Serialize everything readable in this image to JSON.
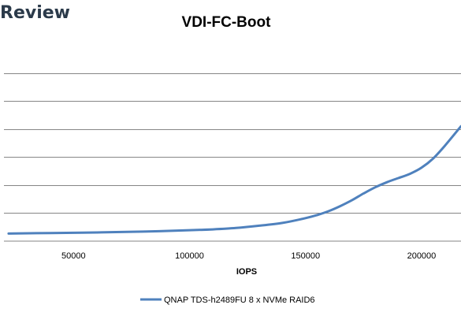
{
  "brand": {
    "logo_text": "Review"
  },
  "chart_data": {
    "type": "line",
    "title": "VDI-FC-Boot",
    "xlabel": "IOPS",
    "ylabel": "",
    "xlim": [
      20000,
      217000
    ],
    "ylim": [
      0,
      7
    ],
    "x_ticks": [
      50000,
      100000,
      150000,
      200000
    ],
    "x_tick_labels": [
      "50000",
      "100000",
      "150000",
      "200000"
    ],
    "y_gridlines": [
      1,
      2,
      3,
      4,
      5,
      6
    ],
    "grid": true,
    "legend_position": "bottom",
    "series": [
      {
        "name": "QNAP TDS-h2489FU 8 x NVMe RAID6",
        "color": "#4f81bd",
        "x": [
          22000,
          40000,
          60000,
          80000,
          100000,
          110000,
          120000,
          130000,
          140000,
          150000,
          155000,
          160000,
          165000,
          170000,
          175000,
          180000,
          185000,
          190000,
          195000,
          200000,
          205000,
          210000,
          217000
        ],
        "y": [
          0.27,
          0.29,
          0.31,
          0.34,
          0.39,
          0.42,
          0.47,
          0.55,
          0.65,
          0.82,
          0.93,
          1.07,
          1.25,
          1.46,
          1.7,
          1.92,
          2.1,
          2.25,
          2.4,
          2.62,
          2.95,
          3.4,
          4.1
        ]
      }
    ]
  }
}
